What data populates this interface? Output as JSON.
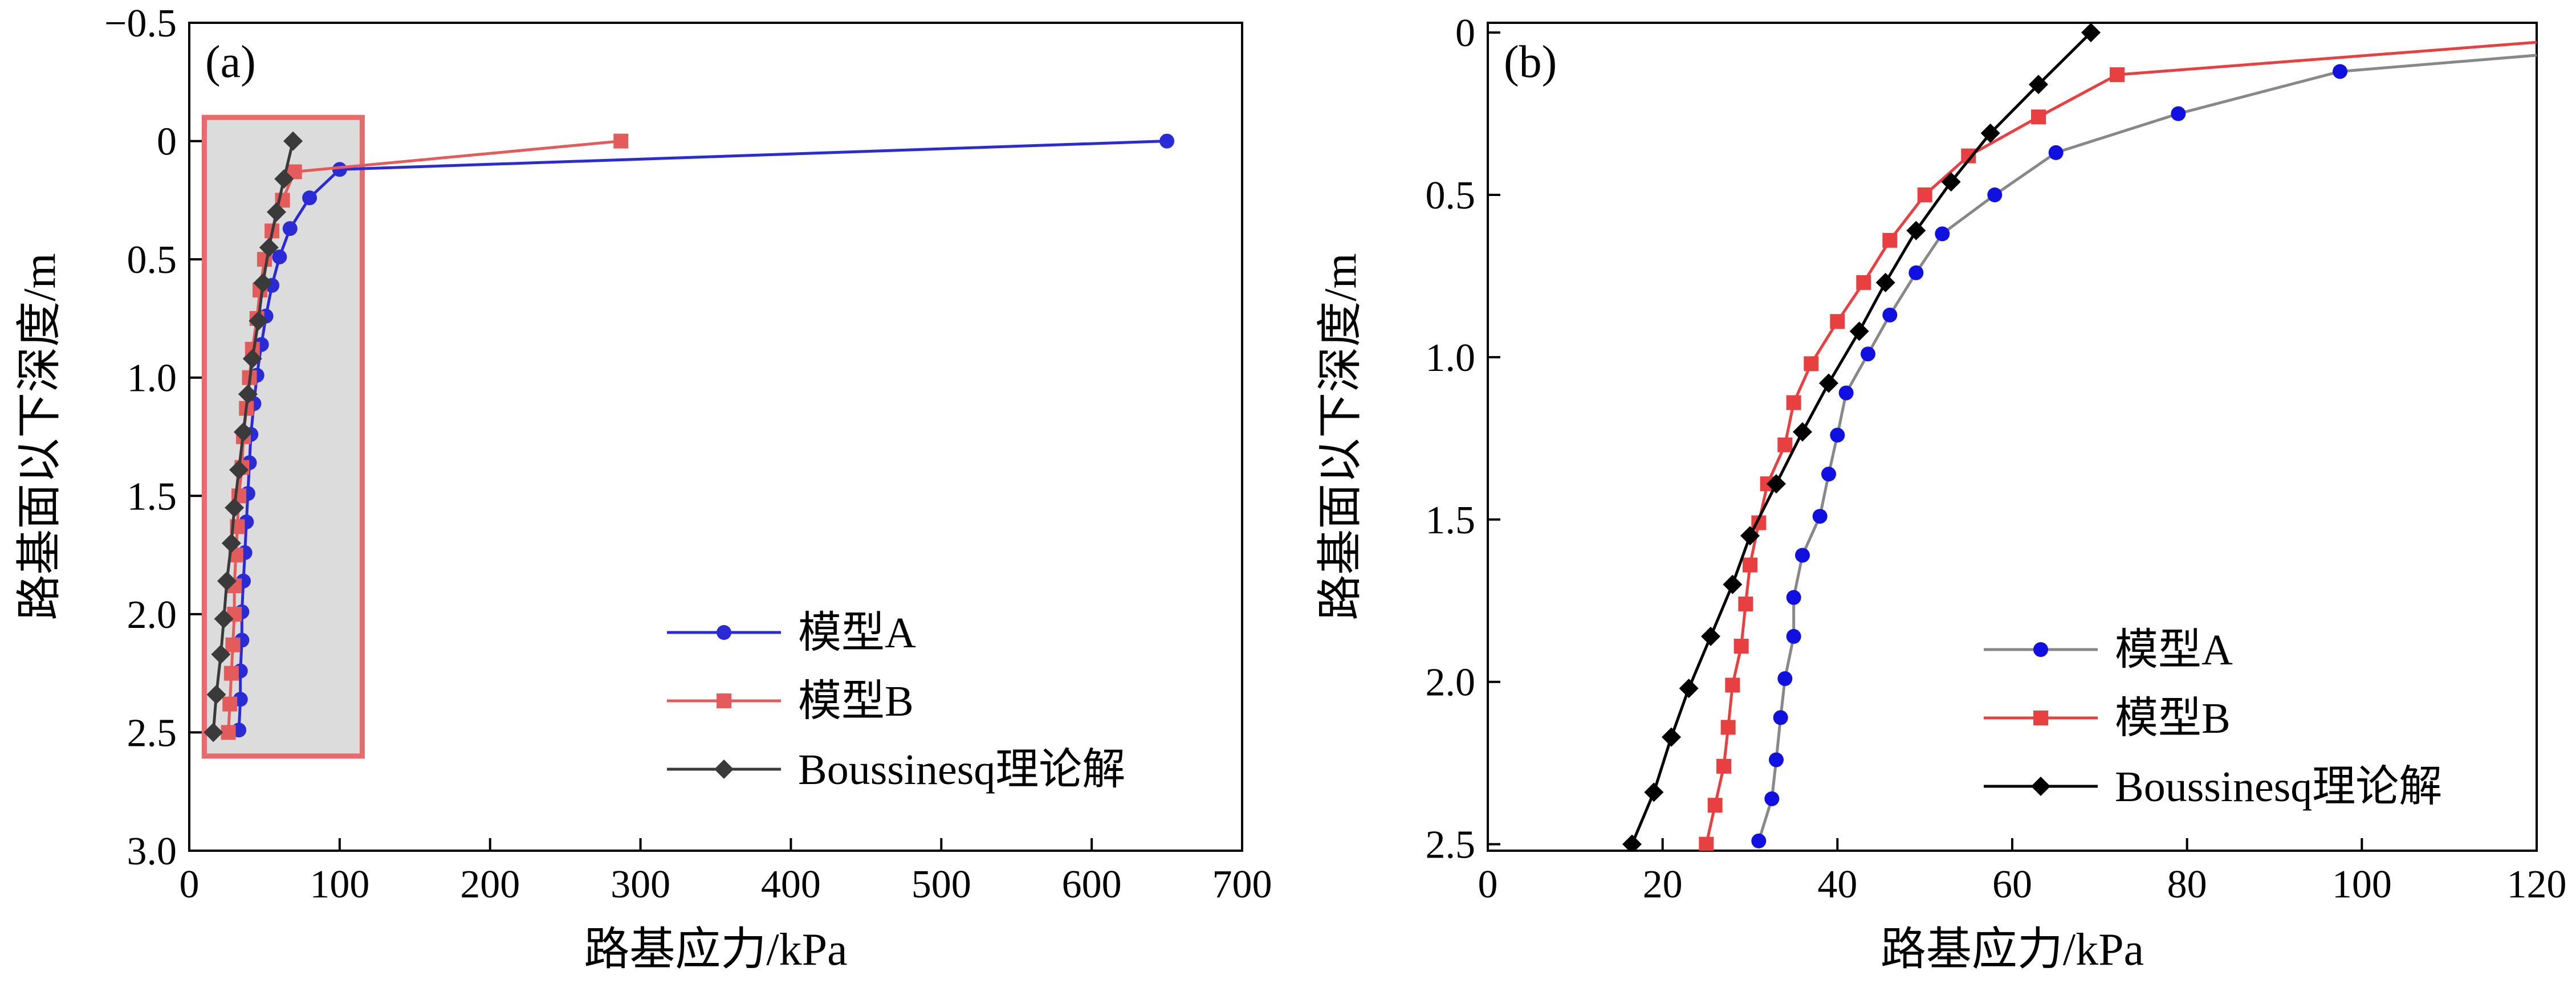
{
  "chart_data": [
    {
      "type": "line",
      "panel_label": "(a)",
      "xlabel": "路基应力/kPa",
      "ylabel": "路基面以下深度/m",
      "xlim": [
        0,
        700
      ],
      "ylim": [
        -0.5,
        3.0
      ],
      "y_inverted": true,
      "xticks": [
        "0",
        "100",
        "200",
        "300",
        "400",
        "500",
        "600",
        "700"
      ],
      "yticks": [
        "−0.5",
        "0",
        "0.5",
        "1.0",
        "1.5",
        "2.0",
        "2.5",
        "3.0"
      ],
      "highlight_region": {
        "x": [
          10,
          115
        ],
        "y": [
          -0.1,
          2.6
        ]
      },
      "legend": {
        "position": "lower-right",
        "entries": [
          "模型A",
          "模型B",
          "Boussinesq理论解"
        ]
      },
      "series": [
        {
          "name": "模型A",
          "color": "#2b2bd6",
          "marker": "circle",
          "points": [
            [
              650,
              0
            ],
            [
              100,
              0.12
            ],
            [
              80,
              0.24
            ],
            [
              67,
              0.37
            ],
            [
              60,
              0.49
            ],
            [
              55,
              0.61
            ],
            [
              51,
              0.74
            ],
            [
              48,
              0.86
            ],
            [
              45,
              0.99
            ],
            [
              43,
              1.11
            ],
            [
              41,
              1.24
            ],
            [
              40,
              1.36
            ],
            [
              39,
              1.49
            ],
            [
              38,
              1.61
            ],
            [
              37,
              1.74
            ],
            [
              36,
              1.86
            ],
            [
              35,
              1.99
            ],
            [
              35,
              2.11
            ],
            [
              34,
              2.24
            ],
            [
              34,
              2.36
            ],
            [
              33,
              2.49
            ]
          ]
        },
        {
          "name": "模型B",
          "color": "#e35b5b",
          "marker": "square",
          "points": [
            [
              287,
              0
            ],
            [
              70,
              0.13
            ],
            [
              62,
              0.25
            ],
            [
              55,
              0.38
            ],
            [
              50,
              0.5
            ],
            [
              47,
              0.63
            ],
            [
              45,
              0.75
            ],
            [
              42,
              0.88
            ],
            [
              40,
              1.0
            ],
            [
              38,
              1.13
            ],
            [
              36,
              1.25
            ],
            [
              35,
              1.38
            ],
            [
              33,
              1.5
            ],
            [
              32,
              1.63
            ],
            [
              31,
              1.75
            ],
            [
              30,
              1.88
            ],
            [
              30,
              2.0
            ],
            [
              29,
              2.13
            ],
            [
              28,
              2.25
            ],
            [
              27,
              2.38
            ],
            [
              26,
              2.5
            ]
          ]
        },
        {
          "name": "Boussinesq理论解",
          "color": "#3a3a3a",
          "marker": "diamond",
          "points": [
            [
              69,
              0
            ],
            [
              63,
              0.16
            ],
            [
              58,
              0.3
            ],
            [
              53,
              0.45
            ],
            [
              49,
              0.6
            ],
            [
              46,
              0.76
            ],
            [
              42,
              0.92
            ],
            [
              39,
              1.07
            ],
            [
              36,
              1.23
            ],
            [
              33,
              1.39
            ],
            [
              30,
              1.55
            ],
            [
              28,
              1.7
            ],
            [
              25,
              1.86
            ],
            [
              23,
              2.02
            ],
            [
              21,
              2.17
            ],
            [
              18,
              2.34
            ],
            [
              16,
              2.5
            ]
          ]
        }
      ]
    },
    {
      "type": "line",
      "panel_label": "(b)",
      "xlabel": "路基应力/kPa",
      "ylabel": "路基面以下深度/m",
      "xlim": [
        0,
        120
      ],
      "ylim": [
        -0.03,
        2.52
      ],
      "y_inverted": true,
      "xticks": [
        "0",
        "20",
        "40",
        "60",
        "80",
        "100",
        "120"
      ],
      "yticks": [
        "0",
        "0.5",
        "1.0",
        "1.5",
        "2.0",
        "2.5"
      ],
      "legend": {
        "position": "lower-right",
        "entries": [
          "模型A",
          "模型B",
          "Boussinesq理论解"
        ]
      },
      "series": [
        {
          "name": "模型A",
          "color": "#888888",
          "marker_color": "#1010e0",
          "marker": "circle",
          "points": [
            [
              120,
              0.07
            ],
            [
              97.5,
              0.12
            ],
            [
              79,
              0.25
            ],
            [
              65,
              0.37
            ],
            [
              58,
              0.5
            ],
            [
              52,
              0.62
            ],
            [
              49,
              0.74
            ],
            [
              46,
              0.87
            ],
            [
              43.5,
              0.99
            ],
            [
              41,
              1.11
            ],
            [
              40,
              1.24
            ],
            [
              39,
              1.36
            ],
            [
              38,
              1.49
            ],
            [
              36,
              1.61
            ],
            [
              35,
              1.74
            ],
            [
              35,
              1.86
            ],
            [
              34,
              1.99
            ],
            [
              33.5,
              2.11
            ],
            [
              33,
              2.24
            ],
            [
              32.5,
              2.36
            ],
            [
              31,
              2.49
            ]
          ]
        },
        {
          "name": "模型B",
          "color": "#e84040",
          "marker": "square",
          "points": [
            [
              120,
              0.03
            ],
            [
              72,
              0.13
            ],
            [
              63,
              0.26
            ],
            [
              55,
              0.38
            ],
            [
              50,
              0.5
            ],
            [
              46,
              0.64
            ],
            [
              43,
              0.77
            ],
            [
              40,
              0.89
            ],
            [
              37,
              1.02
            ],
            [
              35,
              1.14
            ],
            [
              34,
              1.27
            ],
            [
              32,
              1.39
            ],
            [
              31,
              1.51
            ],
            [
              30,
              1.64
            ],
            [
              29.5,
              1.76
            ],
            [
              29,
              1.89
            ],
            [
              28,
              2.01
            ],
            [
              27.5,
              2.14
            ],
            [
              27,
              2.26
            ],
            [
              26,
              2.38
            ],
            [
              25,
              2.5
            ]
          ]
        },
        {
          "name": "Boussinesq理论解",
          "color": "#000000",
          "marker": "diamond",
          "points": [
            [
              69,
              0
            ],
            [
              63,
              0.16
            ],
            [
              57.5,
              0.31
            ],
            [
              53,
              0.46
            ],
            [
              49,
              0.61
            ],
            [
              45.5,
              0.77
            ],
            [
              42.5,
              0.92
            ],
            [
              39,
              1.08
            ],
            [
              36,
              1.23
            ],
            [
              33,
              1.39
            ],
            [
              30,
              1.55
            ],
            [
              28,
              1.7
            ],
            [
              25.5,
              1.86
            ],
            [
              23,
              2.02
            ],
            [
              21,
              2.17
            ],
            [
              19,
              2.34
            ],
            [
              16.5,
              2.5
            ]
          ]
        }
      ]
    }
  ]
}
